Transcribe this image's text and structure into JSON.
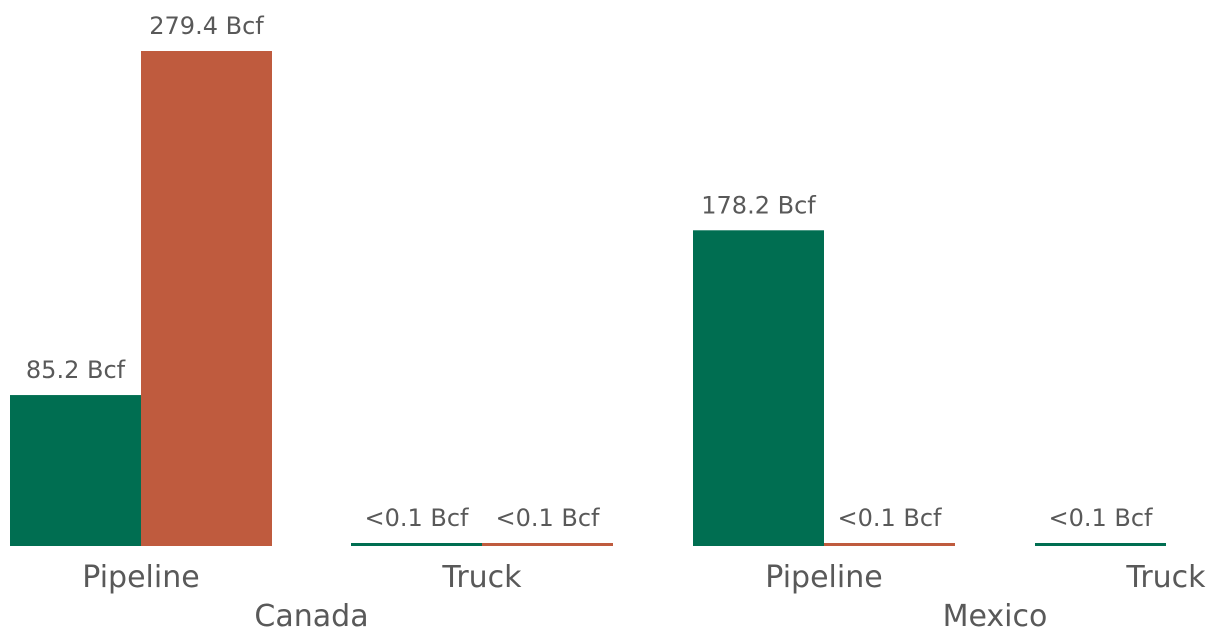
{
  "chart_data": {
    "type": "bar",
    "groups": [
      {
        "country": "Canada",
        "modes": [
          {
            "mode": "Pipeline",
            "bars": [
              {
                "series_index": 0,
                "value": 85.2,
                "label": "85.2 Bcf"
              },
              {
                "series_index": 1,
                "value": 279.4,
                "label": "279.4 Bcf"
              }
            ]
          },
          {
            "mode": "Truck",
            "bars": [
              {
                "series_index": 0,
                "value": 0.05,
                "label": "<0.1 Bcf"
              },
              {
                "series_index": 1,
                "value": 0.05,
                "label": "<0.1 Bcf"
              }
            ]
          }
        ]
      },
      {
        "country": "Mexico",
        "modes": [
          {
            "mode": "Pipeline",
            "bars": [
              {
                "series_index": 0,
                "value": 178.2,
                "label": "178.2 Bcf"
              },
              {
                "series_index": 1,
                "value": 0.05,
                "label": "<0.1 Bcf"
              }
            ]
          },
          {
            "mode": "Truck",
            "bars": [
              {
                "series_index": 0,
                "value": 0.05,
                "label": "<0.1 Bcf"
              }
            ]
          }
        ]
      }
    ],
    "series_colors": [
      "#006e51",
      "#bf5b3e"
    ],
    "ylim": [
      0,
      279.4
    ],
    "grid": false,
    "legend": "none",
    "title": "",
    "xlabel": "",
    "ylabel": ""
  }
}
